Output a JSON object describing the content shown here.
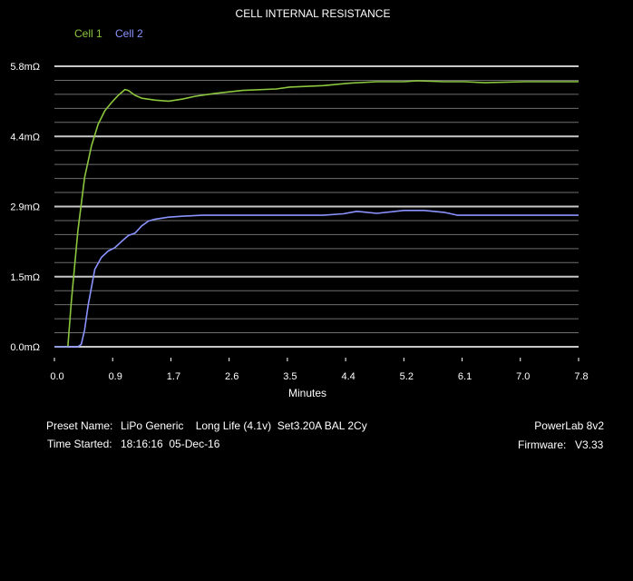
{
  "chart_data": {
    "type": "line",
    "title": "CELL INTERNAL RESISTANCE",
    "xlabel": "Minutes",
    "ylabel": "",
    "xlim": [
      0,
      7.8
    ],
    "ylim": [
      0,
      5.8
    ],
    "x_ticks": [
      "0.0",
      "0.9",
      "1.7",
      "2.6",
      "3.5",
      "4.4",
      "5.2",
      "6.1",
      "7.0",
      "7.8"
    ],
    "y_ticks": [
      {
        "label": "0.0mΩ",
        "value": 0.0
      },
      {
        "label": "1.5mΩ",
        "value": 1.45
      },
      {
        "label": "2.9mΩ",
        "value": 2.9
      },
      {
        "label": "4.4mΩ",
        "value": 4.35
      },
      {
        "label": "5.8mΩ",
        "value": 5.8
      }
    ],
    "grid": true,
    "legend_position": "top-left",
    "series": [
      {
        "name": "Cell 1",
        "color": "#8cc63f",
        "x": [
          0.0,
          0.2,
          0.25,
          0.35,
          0.45,
          0.55,
          0.65,
          0.75,
          0.85,
          0.95,
          1.05,
          1.1,
          1.2,
          1.3,
          1.5,
          1.7,
          1.9,
          2.1,
          2.4,
          2.8,
          3.3,
          3.5,
          4.0,
          4.4,
          4.8,
          5.2,
          5.4,
          5.8,
          6.1,
          6.4,
          7.0,
          7.8
        ],
        "values": [
          0.0,
          0.0,
          0.9,
          2.4,
          3.5,
          4.15,
          4.6,
          4.88,
          5.05,
          5.2,
          5.32,
          5.3,
          5.2,
          5.14,
          5.1,
          5.08,
          5.12,
          5.18,
          5.24,
          5.3,
          5.33,
          5.37,
          5.4,
          5.45,
          5.48,
          5.48,
          5.5,
          5.48,
          5.48,
          5.46,
          5.48,
          5.48
        ]
      },
      {
        "name": "Cell 2",
        "color": "#8a93ff",
        "x": [
          0.0,
          0.35,
          0.4,
          0.45,
          0.5,
          0.6,
          0.7,
          0.8,
          0.9,
          1.0,
          1.1,
          1.2,
          1.3,
          1.4,
          1.5,
          1.7,
          1.9,
          2.2,
          2.6,
          3.0,
          3.5,
          4.0,
          4.3,
          4.5,
          4.8,
          5.2,
          5.5,
          5.8,
          6.0,
          6.5,
          7.0,
          7.8
        ],
        "values": [
          0.0,
          0.0,
          0.05,
          0.35,
          0.85,
          1.6,
          1.85,
          1.98,
          2.05,
          2.18,
          2.3,
          2.35,
          2.5,
          2.6,
          2.64,
          2.68,
          2.7,
          2.72,
          2.72,
          2.72,
          2.72,
          2.72,
          2.75,
          2.8,
          2.76,
          2.82,
          2.82,
          2.78,
          2.72,
          2.72,
          2.72,
          2.72
        ]
      }
    ]
  },
  "info": {
    "preset_label": "Preset Name:",
    "preset_value": "LiPo Generic    Long Life (4.1v)  Set3.20A BAL 2Cy",
    "time_label": "Time Started:",
    "time_value": "18:16:16  05-Dec-16",
    "device": "PowerLab 8v2",
    "firmware_label": "Firmware:",
    "firmware_value": "V3.33"
  }
}
